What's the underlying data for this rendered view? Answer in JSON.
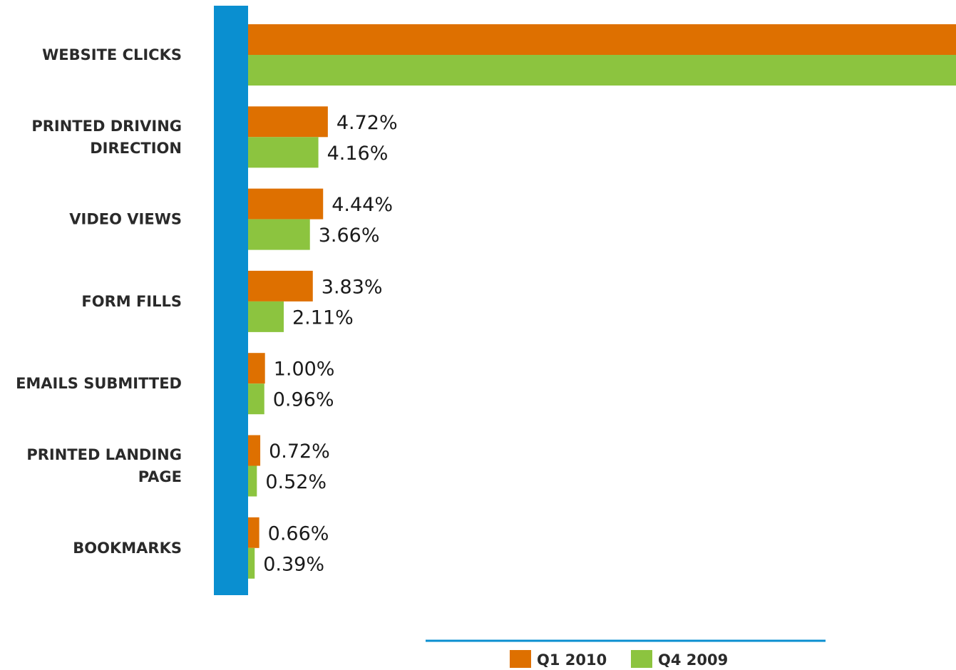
{
  "chart_data": {
    "type": "bar",
    "orientation": "horizontal",
    "title": "",
    "xlabel": "",
    "ylabel": "",
    "categories": [
      [
        "WEBSITE CLICKS"
      ],
      [
        "PRINTED DRIVING",
        "DIRECTION"
      ],
      [
        "VIDEO VIEWS"
      ],
      [
        "FORM FILLS"
      ],
      [
        "EMAILS SUBMITTED"
      ],
      [
        "PRINTED LANDING",
        "PAGE"
      ],
      [
        "BOOKMARKS"
      ]
    ],
    "series": [
      {
        "name": "Q1 2010",
        "color": "#de7000",
        "values": [
          null,
          4.72,
          4.44,
          3.83,
          1.0,
          0.72,
          0.66
        ],
        "labels": [
          "",
          "4.72%",
          "4.44%",
          "3.83%",
          "1.00%",
          "0.72%",
          "0.66%"
        ]
      },
      {
        "name": "Q4 2009",
        "color": "#8cc43f",
        "values": [
          null,
          4.16,
          3.66,
          2.11,
          0.96,
          0.52,
          0.39
        ],
        "labels": [
          "",
          "4.16%",
          "3.66%",
          "2.11%",
          "0.96%",
          "0.52%",
          "0.39%"
        ]
      }
    ],
    "overflow_bars": [
      true,
      false,
      false,
      false,
      false,
      false,
      false
    ],
    "axis_color": "#0a8fd0",
    "grid": false,
    "legend_position": "bottom-center"
  }
}
